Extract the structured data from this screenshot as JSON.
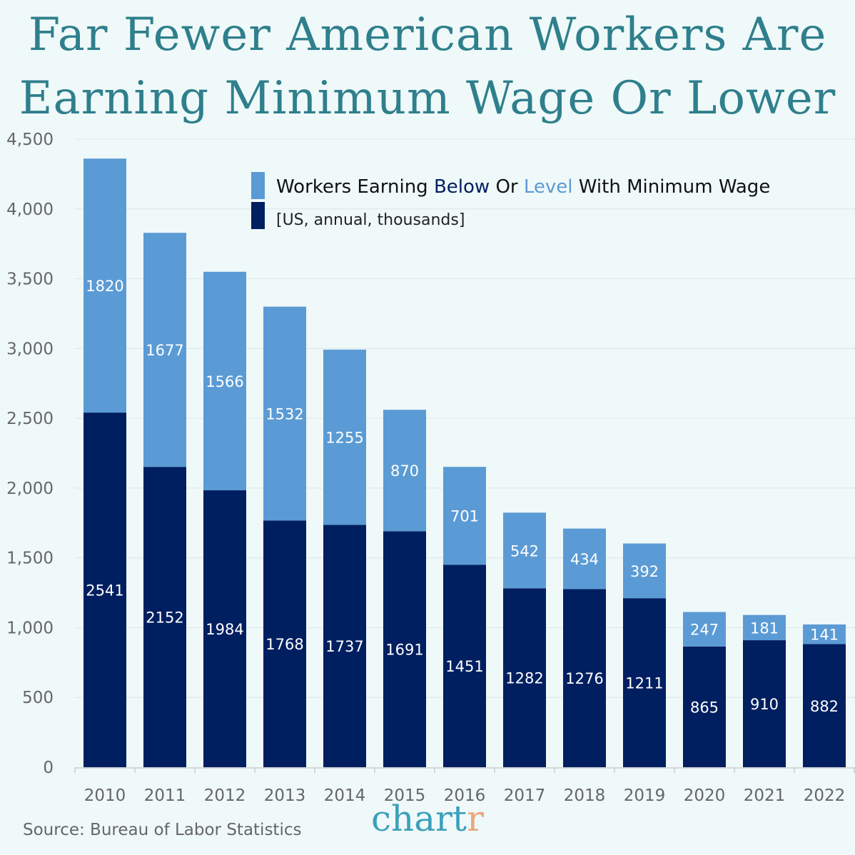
{
  "title_line1": "Far Fewer American Workers Are",
  "title_line2": "Earning Minimum Wage Or Lower",
  "source": "Source: Bureau of Labor Statistics",
  "logo": {
    "main": "chart",
    "accent": "r"
  },
  "colors": {
    "below": "#001f60",
    "level": "#5b9bd5",
    "title": "#2f7f8c"
  },
  "chart_data": {
    "type": "bar",
    "stacked": true,
    "categories": [
      "2010",
      "2011",
      "2012",
      "2013",
      "2014",
      "2015",
      "2016",
      "2017",
      "2018",
      "2019",
      "2020",
      "2021",
      "2022"
    ],
    "series": [
      {
        "name": "Below",
        "values": [
          2541,
          2152,
          1984,
          1768,
          1737,
          1691,
          1451,
          1282,
          1276,
          1211,
          865,
          910,
          882
        ]
      },
      {
        "name": "Level",
        "values": [
          1820,
          1677,
          1566,
          1532,
          1255,
          870,
          701,
          542,
          434,
          392,
          247,
          181,
          141
        ]
      }
    ],
    "legend": {
      "parts": [
        "Workers Earning ",
        "Below",
        " Or ",
        "Level",
        " With Minimum Wage"
      ],
      "subtitle": "[US, annual, thousands]",
      "placement": "top-right"
    },
    "ylim": [
      0,
      4500
    ],
    "yticks": [
      0,
      500,
      1000,
      1500,
      2000,
      2500,
      3000,
      3500,
      4000,
      4500
    ],
    "ytick_labels": [
      "0",
      "500",
      "1,000",
      "1,500",
      "2,000",
      "2,500",
      "3,000",
      "3,500",
      "4,000",
      "4,500"
    ],
    "grid": true
  }
}
